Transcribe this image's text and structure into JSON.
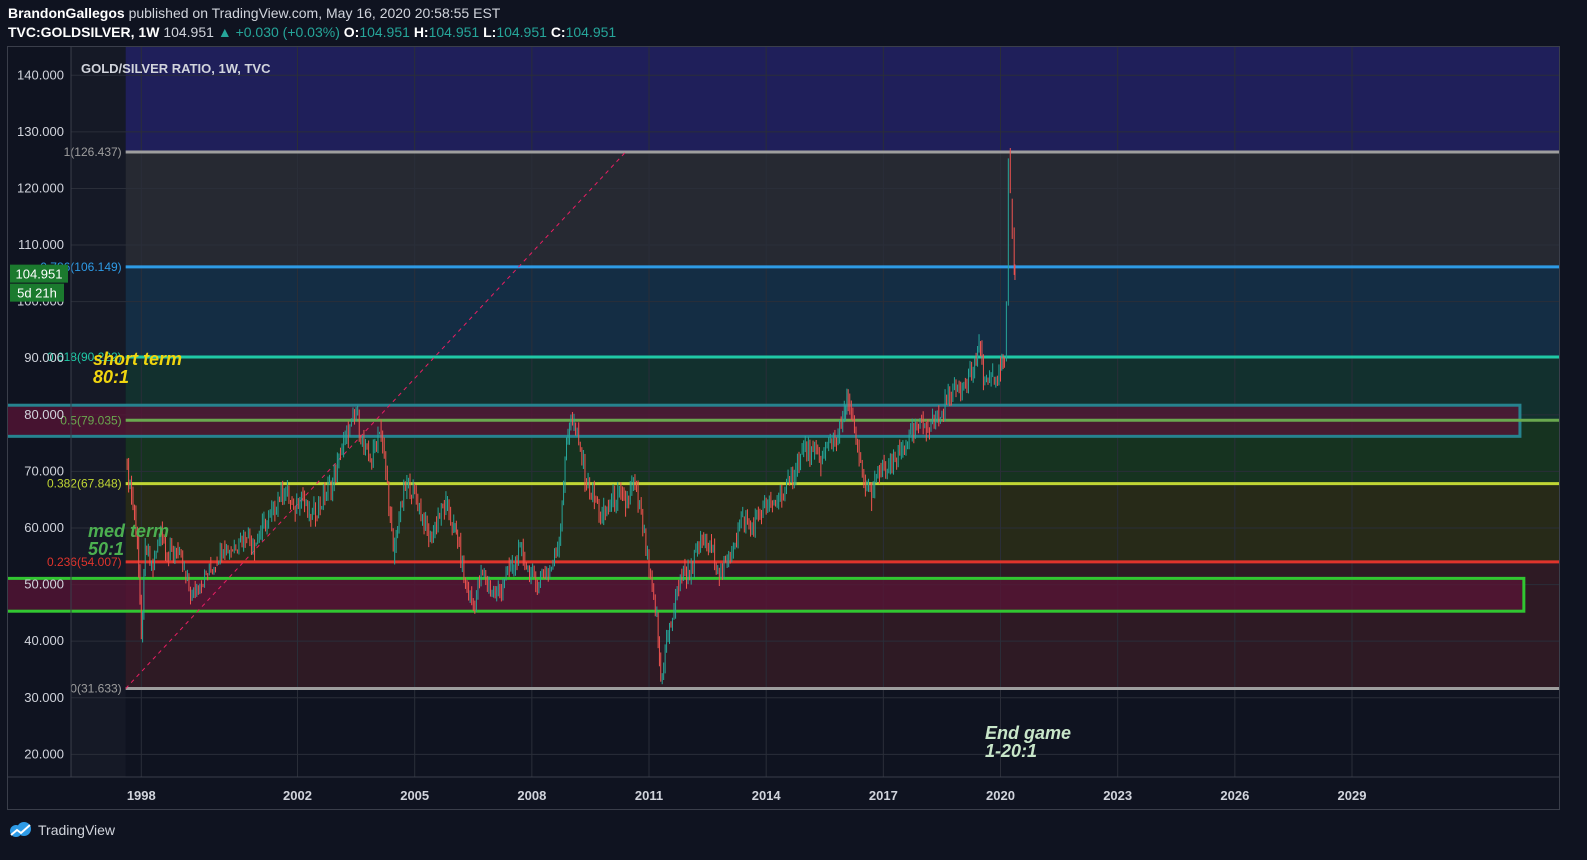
{
  "header": {
    "author": "BrandonGallegos",
    "published": "published on TradingView.com, May 16, 2020 20:58:55 EST",
    "symbol": "TVC:GOLDSILVER, 1W",
    "last": "104.951",
    "change": "+0.030 (+0.03%)",
    "o_label": "O:",
    "o_value": "104.951",
    "h_label": "H:",
    "h_value": "104.951",
    "l_label": "L:",
    "l_value": "104.951",
    "c_label": "C:",
    "c_value": "104.951"
  },
  "footer": {
    "brand": "TradingView"
  },
  "colors": {
    "background": "#0f1320",
    "up": "#26a69a",
    "down": "#ef5350"
  },
  "chart_data": {
    "type": "candlestick",
    "title": "GOLD/SILVER RATIO, 1W, TVC",
    "ylim": [
      16,
      145
    ],
    "xlim": [
      1996.2,
      2034.3
    ],
    "y_ticks": [
      140,
      130,
      120,
      110,
      100,
      90,
      80,
      70,
      60,
      50,
      40,
      30,
      20
    ],
    "y_tick_labels": [
      "140.000",
      "130.000",
      "120.000",
      "110.000",
      "100.000",
      "90.000",
      "80.000",
      "70.000",
      "60.000",
      "50.000",
      "40.000",
      "30.000",
      "20.000"
    ],
    "x_ticks": [
      1998,
      2002,
      2005,
      2008,
      2011,
      2014,
      2017,
      2020,
      2023,
      2026,
      2029
    ],
    "x_tick_labels": [
      "1998",
      "2002",
      "2005",
      "2008",
      "2011",
      "2014",
      "2017",
      "2020",
      "2023",
      "2026",
      "2029"
    ],
    "price_label": {
      "value": 104.951,
      "text": "104.951",
      "countdown": "5d 21h"
    },
    "fib_start_x": 1997.6,
    "fib_levels": [
      {
        "ratio": "1",
        "value": 126.437,
        "label": "1(126.437)",
        "color": "#9e9e9e"
      },
      {
        "ratio": "0.786",
        "value": 106.149,
        "label": "0.786(106.149)",
        "color": "#2e9be6"
      },
      {
        "ratio": "0.618",
        "value": 90.222,
        "label": "0.618(90.222)",
        "color": "#1fc9a6"
      },
      {
        "ratio": "0.5",
        "value": 79.035,
        "label": "0.5(79.035)",
        "color": "#6aa84f"
      },
      {
        "ratio": "0.382",
        "value": 67.848,
        "label": "0.382(67.848)",
        "color": "#c0d634"
      },
      {
        "ratio": "0.236",
        "value": 54.007,
        "label": "0.236(54.007)",
        "color": "#e0342c"
      },
      {
        "ratio": "0",
        "value": 31.633,
        "label": "0(31.633)",
        "color": "#9e9e9e"
      }
    ],
    "fib_zones": [
      {
        "from": 126.437,
        "to": 145,
        "color": "#1f1f5a"
      },
      {
        "from": 106.149,
        "to": 126.437,
        "color": "#262932"
      },
      {
        "from": 90.222,
        "to": 106.149,
        "color": "#142d44"
      },
      {
        "from": 79.035,
        "to": 90.222,
        "color": "#12302e"
      },
      {
        "from": 67.848,
        "to": 79.035,
        "color": "#163320"
      },
      {
        "from": 54.007,
        "to": 67.848,
        "color": "#272a18"
      },
      {
        "from": 31.633,
        "to": 54.007,
        "color": "#2e1a24"
      }
    ],
    "trend_line": {
      "x1": 1997.6,
      "y1": 31.633,
      "x2": 2010.4,
      "y2": 126.437,
      "color": "#e91e63"
    },
    "boxes": [
      {
        "name": "short-term-box",
        "x1": 1993.4,
        "x2": 2033.3,
        "y_low": 76.2,
        "y_high": 81.7,
        "stroke": "#26838f",
        "fill": "#5a1436"
      },
      {
        "name": "med-term-box",
        "x1": 1993.5,
        "x2": 2033.4,
        "y_low": 45.3,
        "y_high": 51.1,
        "stroke": "#31c631",
        "fill": "#5a1436"
      }
    ],
    "annotations": [
      {
        "id": "short-term",
        "lines": [
          "short term",
          "80:1"
        ],
        "color": "#f0d50f"
      },
      {
        "id": "med-term",
        "lines": [
          "med term",
          "50:1"
        ],
        "color": "#4caf50"
      },
      {
        "id": "end-game",
        "lines": [
          "End game",
          "1-20:1"
        ],
        "color": "#c8e6c9"
      }
    ],
    "series": [
      {
        "name": "GOLDSILVER",
        "points": [
          [
            1997.6,
            72
          ],
          [
            1997.75,
            66
          ],
          [
            1997.9,
            58
          ],
          [
            1998.0,
            40
          ],
          [
            1998.1,
            56
          ],
          [
            1998.3,
            53
          ],
          [
            1998.5,
            60
          ],
          [
            1998.7,
            55
          ],
          [
            1998.9,
            56
          ],
          [
            1999.1,
            52
          ],
          [
            1999.3,
            48
          ],
          [
            1999.5,
            50
          ],
          [
            1999.7,
            52
          ],
          [
            1999.9,
            54
          ],
          [
            2000.1,
            57
          ],
          [
            2000.3,
            56
          ],
          [
            2000.5,
            58
          ],
          [
            2000.7,
            59
          ],
          [
            2000.9,
            57
          ],
          [
            2001.1,
            60
          ],
          [
            2001.3,
            62
          ],
          [
            2001.5,
            65
          ],
          [
            2001.7,
            67
          ],
          [
            2001.9,
            63
          ],
          [
            2002.1,
            66
          ],
          [
            2002.3,
            62
          ],
          [
            2002.5,
            63
          ],
          [
            2002.7,
            66
          ],
          [
            2002.9,
            68
          ],
          [
            2003.1,
            73
          ],
          [
            2003.3,
            77
          ],
          [
            2003.5,
            80
          ],
          [
            2003.7,
            74
          ],
          [
            2003.9,
            72
          ],
          [
            2004.1,
            78
          ],
          [
            2004.3,
            68
          ],
          [
            2004.45,
            55
          ],
          [
            2004.6,
            62
          ],
          [
            2004.8,
            68
          ],
          [
            2005.0,
            66
          ],
          [
            2005.2,
            62
          ],
          [
            2005.4,
            58
          ],
          [
            2005.6,
            62
          ],
          [
            2005.8,
            64
          ],
          [
            2006.0,
            60
          ],
          [
            2006.1,
            58
          ],
          [
            2006.3,
            50
          ],
          [
            2006.5,
            46
          ],
          [
            2006.7,
            52
          ],
          [
            2006.9,
            50
          ],
          [
            2007.1,
            48
          ],
          [
            2007.3,
            51
          ],
          [
            2007.5,
            53
          ],
          [
            2007.7,
            56
          ],
          [
            2007.9,
            53
          ],
          [
            2008.1,
            50
          ],
          [
            2008.3,
            52
          ],
          [
            2008.5,
            53
          ],
          [
            2008.7,
            58
          ],
          [
            2008.85,
            72
          ],
          [
            2009.0,
            80
          ],
          [
            2009.2,
            75
          ],
          [
            2009.4,
            68
          ],
          [
            2009.6,
            65
          ],
          [
            2009.8,
            62
          ],
          [
            2010.0,
            64
          ],
          [
            2010.2,
            66
          ],
          [
            2010.4,
            64
          ],
          [
            2010.6,
            68
          ],
          [
            2010.8,
            62
          ],
          [
            2011.0,
            52
          ],
          [
            2011.2,
            44
          ],
          [
            2011.3,
            33
          ],
          [
            2011.45,
            40
          ],
          [
            2011.6,
            44
          ],
          [
            2011.8,
            52
          ],
          [
            2012.0,
            52
          ],
          [
            2012.2,
            55
          ],
          [
            2012.4,
            58
          ],
          [
            2012.6,
            56
          ],
          [
            2012.8,
            52
          ],
          [
            2013.0,
            54
          ],
          [
            2013.2,
            58
          ],
          [
            2013.4,
            62
          ],
          [
            2013.6,
            60
          ],
          [
            2013.8,
            62
          ],
          [
            2014.0,
            64
          ],
          [
            2014.2,
            64
          ],
          [
            2014.4,
            66
          ],
          [
            2014.6,
            68
          ],
          [
            2014.8,
            72
          ],
          [
            2015.0,
            74
          ],
          [
            2015.2,
            73
          ],
          [
            2015.4,
            72
          ],
          [
            2015.6,
            75
          ],
          [
            2015.8,
            76
          ],
          [
            2016.0,
            80
          ],
          [
            2016.1,
            83
          ],
          [
            2016.3,
            75
          ],
          [
            2016.5,
            68
          ],
          [
            2016.7,
            66
          ],
          [
            2016.9,
            70
          ],
          [
            2017.1,
            70
          ],
          [
            2017.3,
            72
          ],
          [
            2017.5,
            74
          ],
          [
            2017.7,
            76
          ],
          [
            2017.9,
            78
          ],
          [
            2018.1,
            78
          ],
          [
            2018.3,
            79
          ],
          [
            2018.5,
            80
          ],
          [
            2018.7,
            84
          ],
          [
            2018.9,
            85
          ],
          [
            2019.1,
            86
          ],
          [
            2019.3,
            88
          ],
          [
            2019.45,
            92
          ],
          [
            2019.6,
            86
          ],
          [
            2019.8,
            86
          ],
          [
            2020.0,
            88
          ],
          [
            2020.1,
            90
          ],
          [
            2020.15,
            100
          ],
          [
            2020.2,
            126
          ],
          [
            2020.25,
            118
          ],
          [
            2020.3,
            112
          ],
          [
            2020.35,
            106
          ],
          [
            2020.37,
            104.951
          ]
        ]
      }
    ]
  }
}
